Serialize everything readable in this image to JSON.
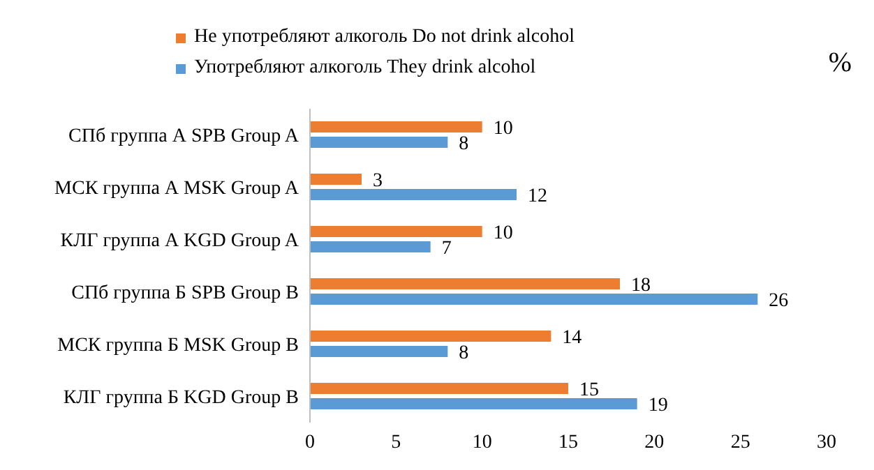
{
  "chart_data": {
    "type": "bar",
    "orientation": "horizontal",
    "xlabel": "%",
    "categories": [
      "СПб группа А SPB Group A",
      "МСК группа А MSK Group A",
      "КЛГ группа А KGD Group A",
      "СПб группа Б SPB Group B",
      "МСК группа Б MSK Group B",
      "КЛГ группа Б KGD Group B"
    ],
    "series": [
      {
        "name": "Не употребляют алкоголь  Do not  drink  alcohol",
        "color": "#ed7d31",
        "values": [
          10,
          3,
          10,
          18,
          14,
          15
        ]
      },
      {
        "name": "Употребляют алкоголь  They  drink  alcohol",
        "color": "#5b9bd5",
        "values": [
          8,
          12,
          7,
          26,
          8,
          19
        ]
      }
    ],
    "xlim": [
      0,
      30
    ],
    "xticks": [
      0,
      5,
      10,
      15,
      20,
      25,
      30
    ],
    "data_labels": true,
    "legend": "top"
  }
}
